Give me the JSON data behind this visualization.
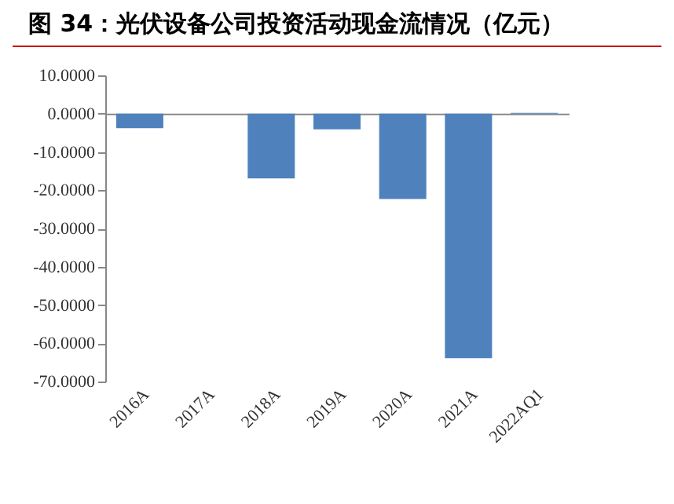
{
  "chart_data": {
    "type": "bar",
    "title": "图 34：光伏设备公司投资活动现金流情况（亿元）",
    "categories": [
      "2016A",
      "2017A",
      "2018A",
      "2019A",
      "2020A",
      "2021A",
      "2022AQ1"
    ],
    "values": [
      -3.8,
      0,
      -16.9,
      -4.1,
      -22.3,
      -63.9,
      0.2
    ],
    "color": "#4f81bd",
    "ylim": [
      -70,
      10
    ],
    "yticks": [
      {
        "value": 10,
        "label": "10.0000"
      },
      {
        "value": 0,
        "label": "0.0000"
      },
      {
        "value": -10,
        "label": "-10.0000"
      },
      {
        "value": -20,
        "label": "-20.0000"
      },
      {
        "value": -30,
        "label": "-30.0000"
      },
      {
        "value": -40,
        "label": "-40.0000"
      },
      {
        "value": -50,
        "label": "-50.0000"
      },
      {
        "value": -60,
        "label": "-60.0000"
      },
      {
        "value": -70,
        "label": "-70.0000"
      }
    ]
  }
}
